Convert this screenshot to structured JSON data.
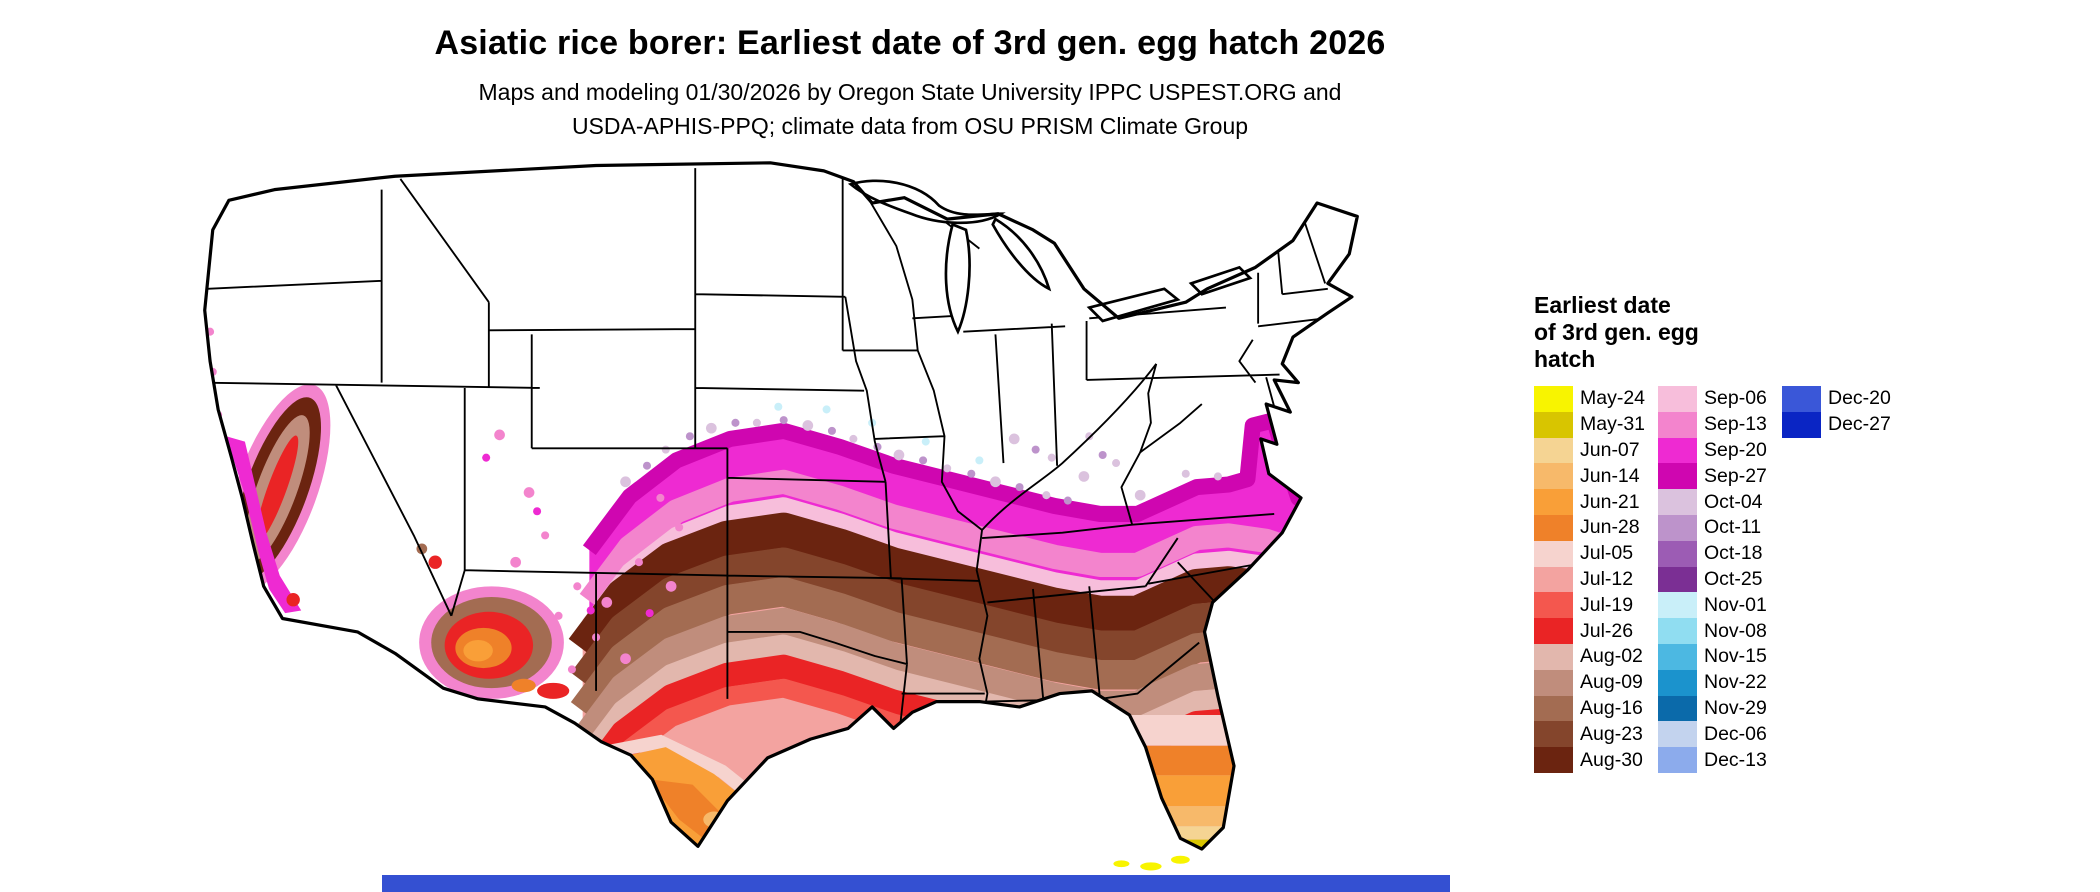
{
  "page": {
    "background": "#ffffff",
    "bottom_bar_color": "#3450d2"
  },
  "header": {
    "title": "Asiatic rice borer: Earliest date of 3rd gen. egg hatch 2026",
    "subtitle_line1": "Maps and modeling 01/30/2026 by Oregon State University IPPC USPEST.ORG and",
    "subtitle_line2": "USDA-APHIS-PPQ; climate data from OSU PRISM Climate Group"
  },
  "map": {
    "description": "Continental United States choropleth showing earliest date of Asiatic rice borer 3rd generation egg hatch; white where not reached",
    "land_color": "#ffffff",
    "border_color": "#000000",
    "bands_north_to_south": [
      "white (not reached)",
      "October purple speckles",
      "September magenta band",
      "August brown bands",
      "July red and pink bands",
      "June orange (south Texas, central Florida, southwest Arizona)",
      "May yellow (south Florida tip)"
    ]
  },
  "legend": {
    "title_lines": [
      "Earliest date",
      "of 3rd gen. egg",
      "hatch"
    ],
    "columns": [
      [
        {
          "label": "May-24",
          "color": "#f8f400"
        },
        {
          "label": "May-31",
          "color": "#d8c500"
        },
        {
          "label": "Jun-07",
          "color": "#f5d493"
        },
        {
          "label": "Jun-14",
          "color": "#f7b96a"
        },
        {
          "label": "Jun-21",
          "color": "#f99f38"
        },
        {
          "label": "Jun-28",
          "color": "#ef8129"
        },
        {
          "label": "Jul-05",
          "color": "#f6d3ce"
        },
        {
          "label": "Jul-12",
          "color": "#f3a3a0"
        },
        {
          "label": "Jul-19",
          "color": "#f4574e"
        },
        {
          "label": "Jul-26",
          "color": "#ea2425"
        },
        {
          "label": "Aug-02",
          "color": "#e2b7ad"
        },
        {
          "label": "Aug-09",
          "color": "#c08d7c"
        },
        {
          "label": "Aug-16",
          "color": "#a36c52"
        },
        {
          "label": "Aug-23",
          "color": "#84452c"
        },
        {
          "label": "Aug-30",
          "color": "#6b2410"
        }
      ],
      [
        {
          "label": "Sep-06",
          "color": "#f7bedb"
        },
        {
          "label": "Sep-13",
          "color": "#f384cd"
        },
        {
          "label": "Sep-20",
          "color": "#ee2ad2"
        },
        {
          "label": "Sep-27",
          "color": "#cf06b0"
        },
        {
          "label": "Oct-04",
          "color": "#dbc2de"
        },
        {
          "label": "Oct-11",
          "color": "#bd93cb"
        },
        {
          "label": "Oct-18",
          "color": "#9c5cb4"
        },
        {
          "label": "Oct-25",
          "color": "#7b2f94"
        },
        {
          "label": "Nov-01",
          "color": "#c9eff9"
        },
        {
          "label": "Nov-08",
          "color": "#90ddf1"
        },
        {
          "label": "Nov-15",
          "color": "#4cb8e2"
        },
        {
          "label": "Nov-22",
          "color": "#1b93cd"
        },
        {
          "label": "Nov-29",
          "color": "#0b6aaa"
        },
        {
          "label": "Dec-06",
          "color": "#c3d3ee"
        },
        {
          "label": "Dec-13",
          "color": "#8cabec"
        }
      ],
      [
        {
          "label": "Dec-20",
          "color": "#3a57d8"
        },
        {
          "label": "Dec-27",
          "color": "#0a25c4"
        }
      ]
    ]
  },
  "chart_data": {
    "type": "choropleth_map",
    "title": "Asiatic rice borer: Earliest date of 3rd gen. egg hatch 2026",
    "legend_title": "Earliest date of 3rd gen. egg hatch",
    "categories": [
      "May-24",
      "May-31",
      "Jun-07",
      "Jun-14",
      "Jun-21",
      "Jun-28",
      "Jul-05",
      "Jul-12",
      "Jul-19",
      "Jul-26",
      "Aug-02",
      "Aug-09",
      "Aug-16",
      "Aug-23",
      "Aug-30",
      "Sep-06",
      "Sep-13",
      "Sep-20",
      "Sep-27",
      "Oct-04",
      "Oct-11",
      "Oct-18",
      "Oct-25",
      "Nov-01",
      "Nov-08",
      "Nov-15",
      "Nov-22",
      "Nov-29",
      "Dec-06",
      "Dec-13",
      "Dec-20",
      "Dec-27"
    ],
    "legend_position": "right"
  }
}
